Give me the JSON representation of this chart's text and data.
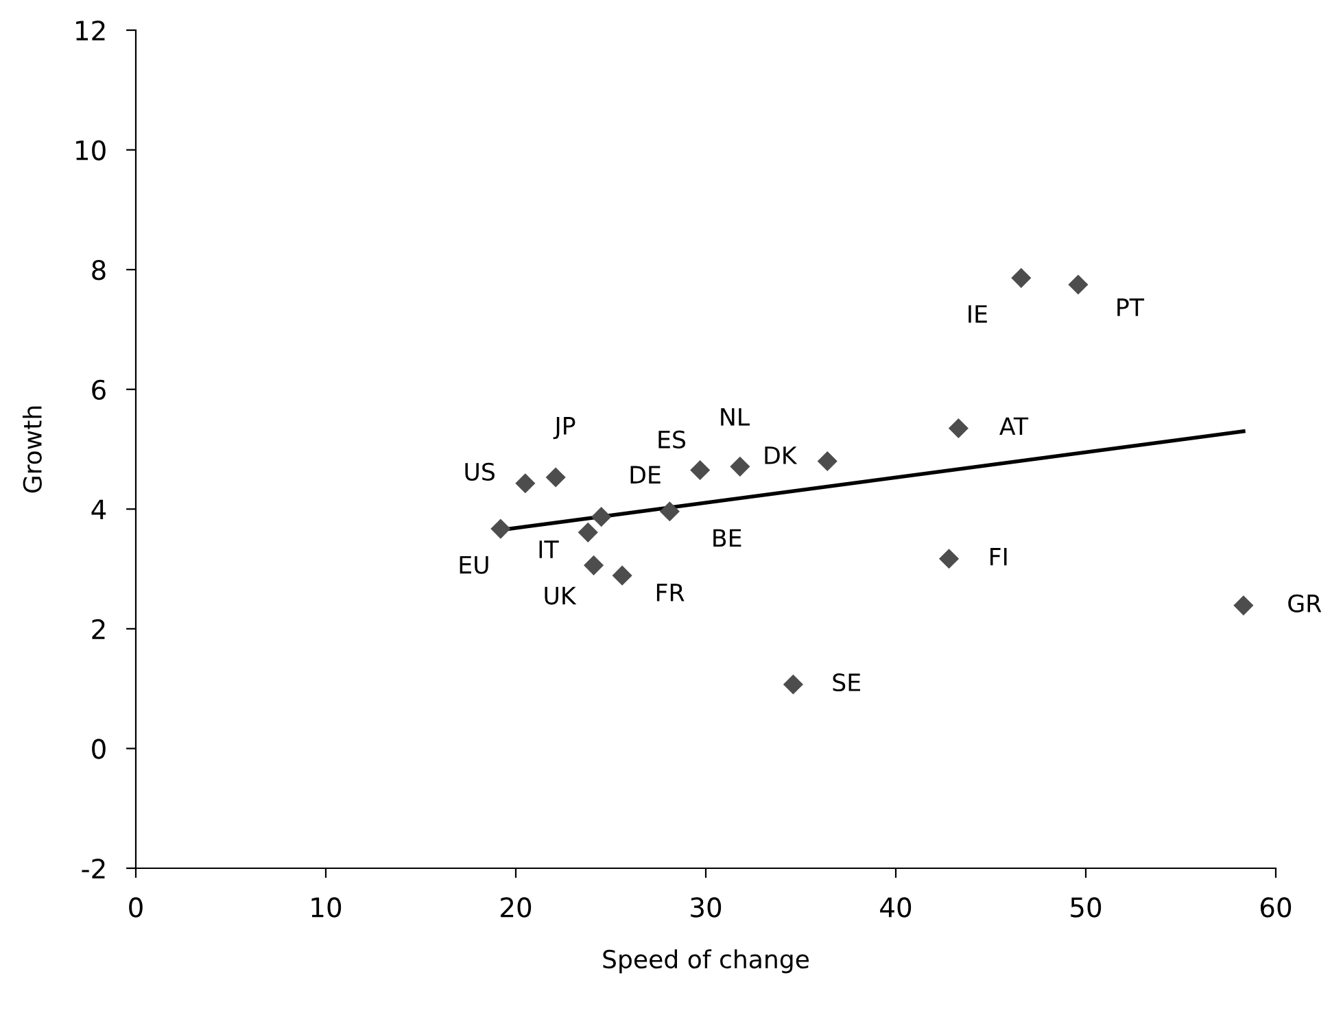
{
  "chart_data": {
    "type": "scatter",
    "xlabel": "Speed of change",
    "ylabel": "Growth",
    "xlim": [
      0,
      60
    ],
    "ylim": [
      -2,
      12
    ],
    "xticks": [
      0,
      10,
      20,
      30,
      40,
      50,
      60
    ],
    "yticks": [
      -2,
      0,
      2,
      4,
      6,
      8,
      10,
      12
    ],
    "grid": false,
    "legend": false,
    "series": [
      {
        "marker": "diamond",
        "color": "#4d4d4d",
        "x": [
          19.2,
          20.5,
          22.1,
          24.5,
          23.8,
          24.1,
          25.6,
          28.1,
          29.7,
          31.8,
          36.4,
          46.6,
          49.6,
          43.3,
          42.8,
          58.3,
          34.6
        ],
        "values": [
          3.67,
          4.43,
          4.53,
          3.87,
          3.61,
          3.06,
          2.89,
          3.96,
          4.65,
          4.71,
          4.8,
          7.86,
          7.75,
          5.35,
          3.17,
          2.39,
          1.07
        ]
      },
      {
        "type": "line",
        "color": "#000000",
        "x": [
          19.2,
          58.3
        ],
        "values": [
          3.65,
          5.3
        ]
      }
    ],
    "annotations": [
      {
        "text": "EU",
        "x": 19.2,
        "y": 3.67
      },
      {
        "text": "US",
        "x": 20.5,
        "y": 4.43
      },
      {
        "text": "JP",
        "x": 22.1,
        "y": 4.53
      },
      {
        "text": "DE",
        "x": 24.5,
        "y": 3.87
      },
      {
        "text": "IT",
        "x": 23.8,
        "y": 3.61
      },
      {
        "text": "UK",
        "x": 24.1,
        "y": 3.06
      },
      {
        "text": "FR",
        "x": 25.6,
        "y": 2.89
      },
      {
        "text": "BE",
        "x": 28.1,
        "y": 3.96
      },
      {
        "text": "ES",
        "x": 29.7,
        "y": 4.65
      },
      {
        "text": "NL",
        "x": 31.8,
        "y": 4.71
      },
      {
        "text": "DK",
        "x": 36.4,
        "y": 4.8
      },
      {
        "text": "IE",
        "x": 46.6,
        "y": 7.86
      },
      {
        "text": "PT",
        "x": 49.6,
        "y": 7.75
      },
      {
        "text": "AT",
        "x": 43.3,
        "y": 5.35
      },
      {
        "text": "FI",
        "x": 42.8,
        "y": 3.17
      },
      {
        "text": "GR",
        "x": 58.3,
        "y": 2.39
      },
      {
        "text": "SE",
        "x": 34.6,
        "y": 1.07
      }
    ]
  }
}
